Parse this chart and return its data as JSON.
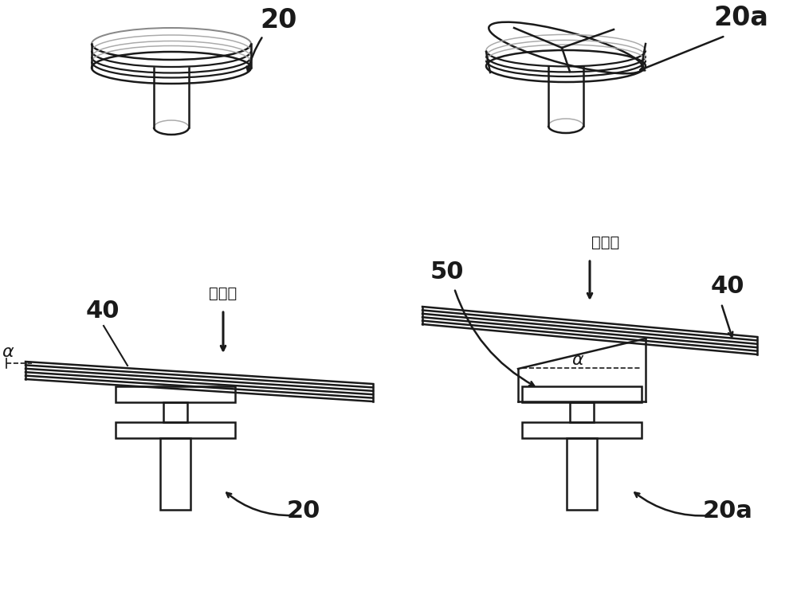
{
  "bg_color": "#ffffff",
  "line_color": "#1a1a1a",
  "lw": 1.8,
  "fig_w": 10.0,
  "fig_h": 7.52,
  "dpi": 100,
  "labels": {
    "num_20": "20",
    "num_20a": "20a",
    "num_40": "40",
    "num_50": "50",
    "beam": "电子束",
    "alpha": "α"
  }
}
